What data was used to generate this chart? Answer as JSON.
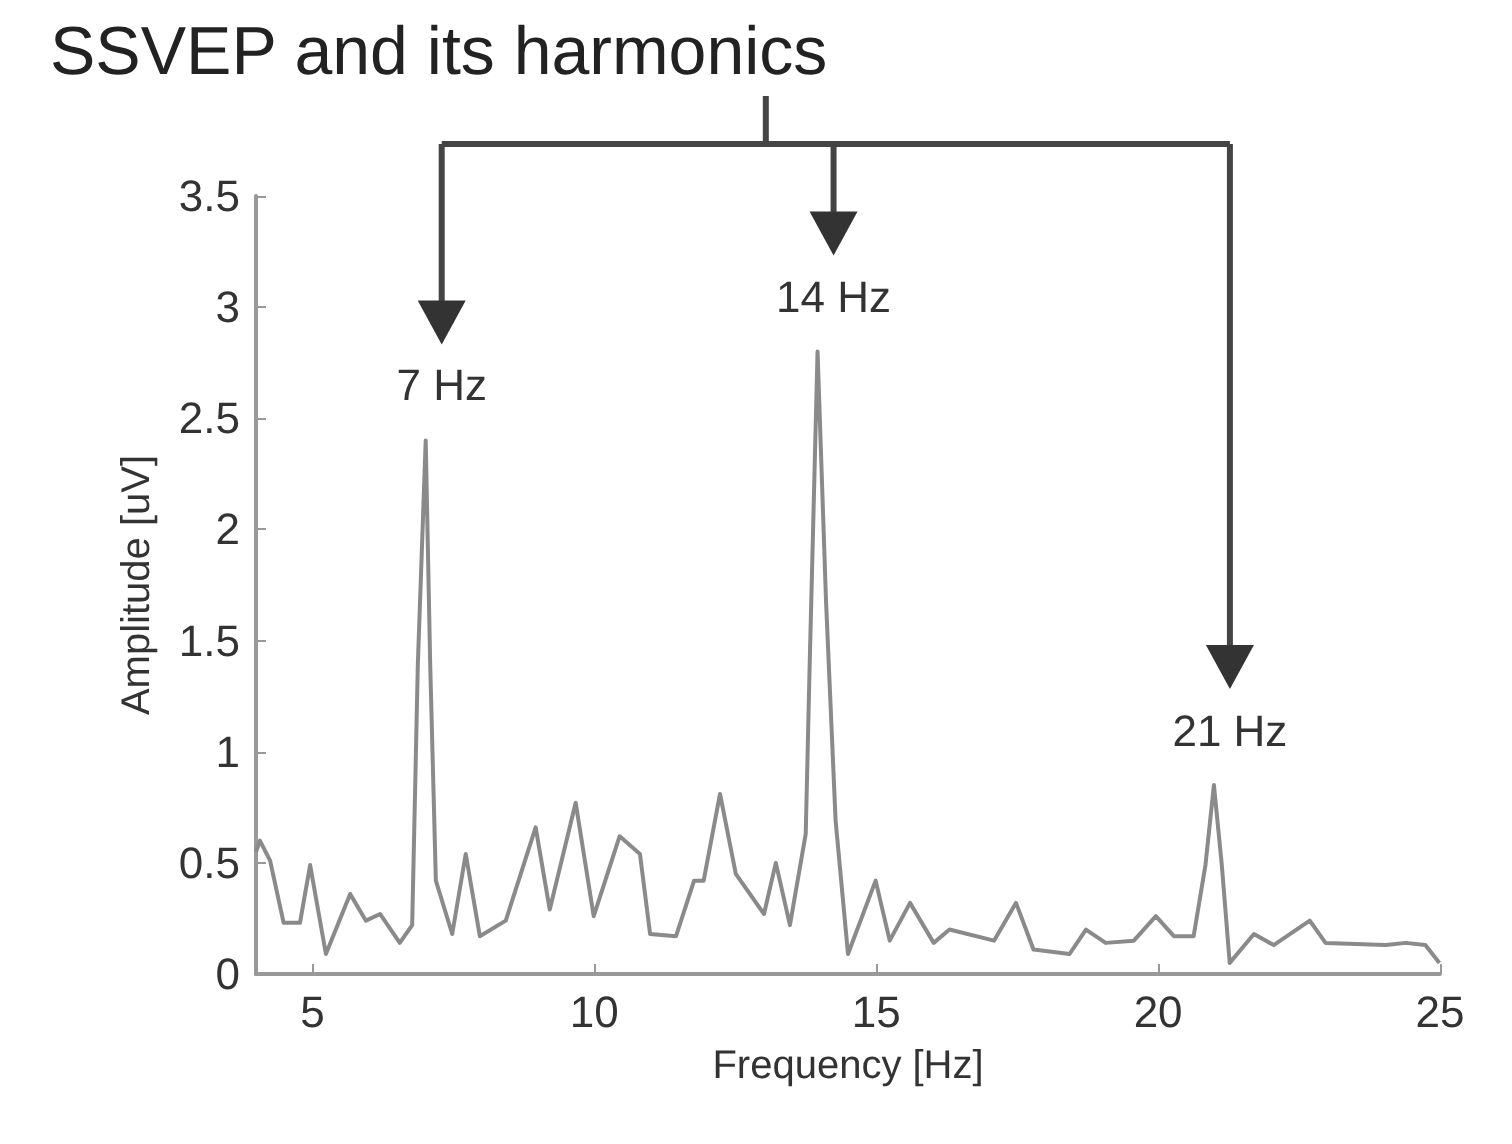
{
  "chart_data": {
    "type": "line",
    "title": "SSVEP and its harmonics",
    "xlabel": "Frequency [Hz]",
    "ylabel": "Amplitude [uV]",
    "xlim": [
      4,
      25
    ],
    "xticks": [
      5,
      10,
      15,
      20,
      25
    ],
    "ylim": [
      0,
      3.5
    ],
    "yticks": [
      0,
      0.5,
      1,
      1.5,
      2,
      2.5,
      3,
      3.5
    ],
    "grid": false,
    "marker": "none",
    "line_style": "solid",
    "annotations": [
      {
        "text": "7 Hz",
        "x": 7.01,
        "y": 2.4
      },
      {
        "text": "14 Hz",
        "x": 13.96,
        "y": 2.8
      },
      {
        "text": "21 Hz",
        "x": 20.99,
        "y": 0.85
      }
    ],
    "series": [
      {
        "color": "#8a8a8a",
        "x": [
          4,
          4.07,
          4.25,
          4.49,
          4.78,
          4.96,
          5.24,
          5.67,
          5.95,
          6.2,
          6.55,
          6.77,
          6.87,
          7.01,
          7.09,
          7.19,
          7.48,
          7.72,
          7.97,
          8.43,
          8.96,
          9.21,
          9.67,
          9.99,
          10.45,
          10.81,
          10.99,
          11.45,
          11.77,
          11.94,
          12.23,
          12.51,
          13.01,
          13.22,
          13.47,
          13.75,
          13.82,
          13.96,
          14.11,
          14.28,
          14.5,
          14.99,
          15.24,
          15.6,
          16.02,
          16.3,
          17.09,
          17.48,
          17.79,
          18.43,
          18.72,
          19.07,
          19.57,
          19.96,
          20.28,
          20.63,
          20.84,
          20.99,
          21.13,
          21.27,
          21.7,
          22.05,
          22.69,
          22.97,
          24.04,
          24.39,
          24.74,
          24.99
        ],
        "values": [
          0.55,
          0.6,
          0.51,
          0.23,
          0.23,
          0.49,
          0.09,
          0.36,
          0.24,
          0.27,
          0.14,
          0.22,
          1.39,
          2.4,
          1.39,
          0.42,
          0.18,
          0.54,
          0.17,
          0.24,
          0.66,
          0.29,
          0.77,
          0.26,
          0.62,
          0.54,
          0.18,
          0.17,
          0.42,
          0.42,
          0.81,
          0.45,
          0.27,
          0.5,
          0.22,
          0.63,
          1.39,
          2.8,
          1.68,
          0.69,
          0.09,
          0.42,
          0.15,
          0.32,
          0.14,
          0.2,
          0.15,
          0.32,
          0.11,
          0.09,
          0.2,
          0.14,
          0.15,
          0.26,
          0.17,
          0.17,
          0.49,
          0.85,
          0.49,
          0.05,
          0.18,
          0.13,
          0.24,
          0.14,
          0.13,
          0.14,
          0.13,
          0.05
        ]
      }
    ]
  }
}
